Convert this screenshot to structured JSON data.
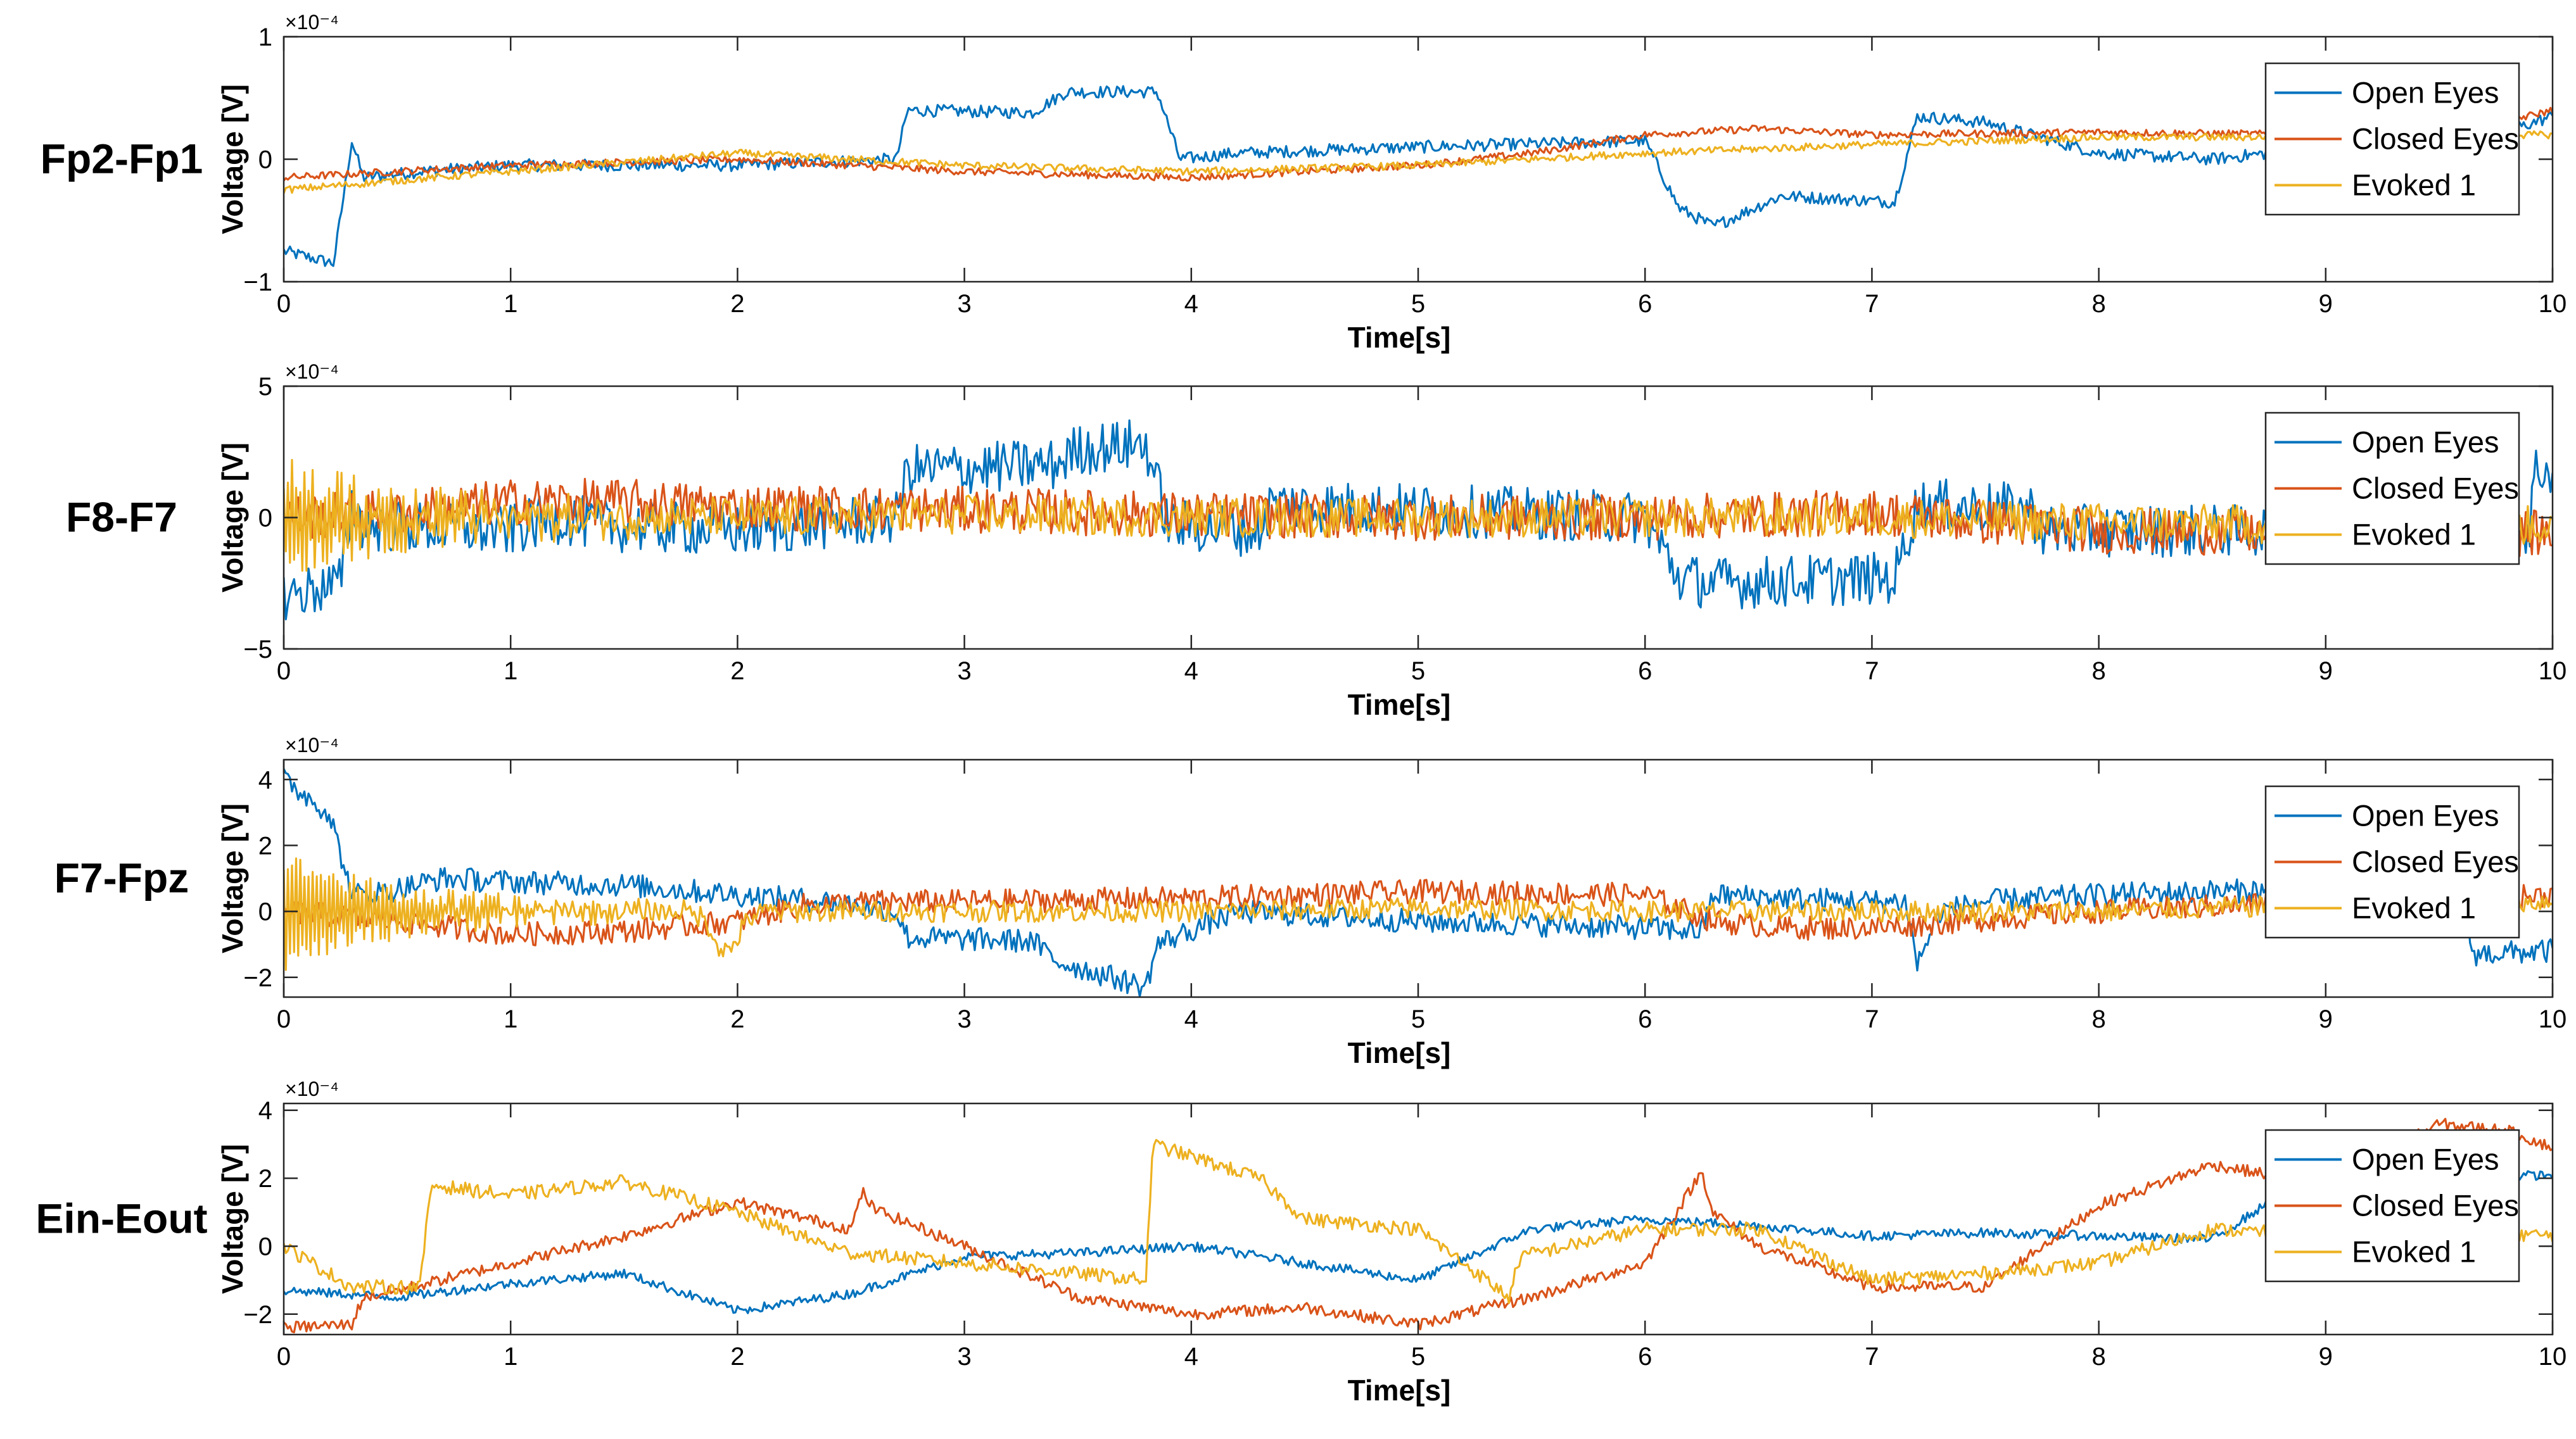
{
  "chart_data": {
    "type": "line",
    "title": "",
    "xlabel": "Time[s]",
    "ylabel": "Voltage [V]",
    "xlim": [
      0,
      10
    ],
    "xticks": [
      0,
      1,
      2,
      3,
      4,
      5,
      6,
      7,
      8,
      9,
      10
    ],
    "grid": false,
    "legend_position": "top-right",
    "series_colors": {
      "Open Eyes": "#0072BD",
      "Closed Eyes": "#D95319",
      "Evoked 1": "#EDB120"
    },
    "panels": [
      {
        "label": "Fp2-Fp1",
        "ylim": [
          -1,
          1
        ],
        "yticks": [
          -1,
          0,
          1
        ],
        "exponent": "×10⁻⁴",
        "xlabel": "Time[s]",
        "ylabel": "Voltage [V]",
        "legend": [
          "Open Eyes",
          "Closed Eyes",
          "Evoked 1"
        ],
        "series": [
          {
            "name": "Open Eyes",
            "noise": 0.1,
            "x": [
              0,
              0.22,
              0.3,
              0.35,
              0.6,
              1,
              2,
              2.7,
              2.75,
              3.3,
              3.45,
              3.85,
              3.95,
              4.2,
              5,
              6,
              6.15,
              6.3,
              6.6,
              7.1,
              7.2,
              7.5,
              8,
              8.5,
              9,
              9.5,
              10
            ],
            "values": [
              -0.75,
              -0.85,
              0.15,
              -0.15,
              -0.1,
              -0.05,
              -0.05,
              0.0,
              0.4,
              0.38,
              0.55,
              0.55,
              0.0,
              0.05,
              0.1,
              0.15,
              -0.4,
              -0.55,
              -0.3,
              -0.35,
              0.35,
              0.3,
              0.05,
              0.0,
              0.1,
              0.05,
              0.35
            ]
          },
          {
            "name": "Closed Eyes",
            "noise": 0.06,
            "x": [
              0,
              1,
              2,
              3,
              4,
              5,
              5.5,
              6,
              6.5,
              7,
              8,
              9,
              9.5,
              10
            ],
            "values": [
              -0.15,
              -0.05,
              0.0,
              -0.1,
              -0.15,
              -0.05,
              0.05,
              0.2,
              0.25,
              0.2,
              0.22,
              0.2,
              0.18,
              0.4
            ]
          },
          {
            "name": "Evoked 1",
            "noise": 0.06,
            "x": [
              0,
              1,
              2,
              3,
              4,
              5,
              6,
              7,
              8,
              9,
              10
            ],
            "values": [
              -0.25,
              -0.1,
              0.05,
              -0.05,
              -0.1,
              -0.05,
              0.05,
              0.12,
              0.18,
              0.18,
              0.2
            ]
          }
        ]
      },
      {
        "label": "F8-F7",
        "ylim": [
          -5,
          5
        ],
        "yticks": [
          -5,
          0,
          5
        ],
        "exponent": "×10⁻⁴",
        "xlabel": "Time[s]",
        "ylabel": "Voltage [V]",
        "legend": [
          "Open Eyes",
          "Closed Eyes",
          "Evoked 1"
        ],
        "series": [
          {
            "name": "Open Eyes",
            "noise": 0.4,
            "x": [
              0,
              0.25,
              0.3,
              0.35,
              1,
              1.2,
              1.4,
              2,
              2.7,
              2.75,
              3.4,
              3.5,
              3.8,
              3.9,
              4.3,
              4.35,
              5,
              6,
              6.15,
              6.3,
              7.1,
              7.2,
              7.7,
              7.75,
              8,
              9,
              9.5,
              9.9,
              9.92,
              10
            ],
            "values": [
              -3.0,
              -2.5,
              0.5,
              -0.3,
              -0.5,
              0.0,
              -0.3,
              -0.5,
              0.0,
              1.8,
              2.0,
              2.6,
              2.8,
              -0.3,
              -0.5,
              0.5,
              0.3,
              0.0,
              -2.3,
              -2.5,
              -2.3,
              0.5,
              0.3,
              -0.5,
              -0.5,
              -0.5,
              -0.5,
              -0.5,
              1.8,
              1.8
            ]
          },
          {
            "name": "Closed Eyes",
            "noise": 0.35,
            "x": [
              0,
              0.5,
              1,
              1.5,
              2,
              3,
              4,
              5,
              6,
              7,
              8,
              9,
              10
            ],
            "values": [
              0.0,
              0.2,
              0.6,
              0.6,
              0.4,
              0.3,
              0.1,
              0.0,
              0.0,
              0.2,
              -0.5,
              -0.6,
              -0.6
            ]
          },
          {
            "name": "Evoked 1",
            "noise": 0.3,
            "osc_amp": 1.6,
            "osc_decay": 0.55,
            "x": [
              0,
              1,
              2,
              3,
              4,
              5,
              6,
              7,
              8,
              9,
              10
            ],
            "values": [
              0.0,
              0.0,
              0.0,
              0.1,
              0.0,
              0.0,
              0.0,
              0.0,
              -0.2,
              -0.3,
              -0.3
            ]
          }
        ]
      },
      {
        "label": "F7-Fpz",
        "ylim": [
          -2.6,
          4.6
        ],
        "yticks": [
          -2,
          0,
          2,
          4
        ],
        "exponent": "×10⁻⁴",
        "xlabel": "Time[s]",
        "ylabel": "Voltage [V]",
        "legend": [
          "Open Eyes",
          "Closed Eyes",
          "Evoked 1"
        ],
        "series": [
          {
            "name": "Open Eyes",
            "noise": 0.2,
            "x": [
              0,
              0.2,
              0.3,
              0.45,
              0.7,
              1,
              1.5,
              2,
              2.4,
              2.7,
              2.75,
              3.3,
              3.4,
              3.8,
              3.85,
              4.2,
              5,
              6,
              6.25,
              6.3,
              7,
              7.15,
              7.2,
              7.3,
              7.5,
              8,
              9,
              9.6,
              9.65,
              10
            ],
            "values": [
              4.0,
              3.0,
              0.5,
              0.6,
              1.0,
              0.9,
              0.8,
              0.5,
              0.3,
              0.0,
              -0.8,
              -0.9,
              -1.5,
              -2.3,
              -1.0,
              0.0,
              -0.3,
              -0.5,
              -0.6,
              0.5,
              0.3,
              0.3,
              -1.6,
              0.0,
              0.3,
              0.5,
              0.7,
              0.5,
              -1.3,
              -1.2
            ]
          },
          {
            "name": "Closed Eyes",
            "noise": 0.2,
            "x": [
              0,
              0.5,
              1,
              1.5,
              2,
              2.3,
              2.7,
              3,
              4,
              5,
              6,
              6.3,
              6.6,
              7,
              8,
              9,
              9.5,
              10
            ],
            "values": [
              0.0,
              -0.3,
              -0.7,
              -0.6,
              -0.3,
              0.2,
              0.3,
              0.3,
              0.4,
              0.6,
              0.5,
              -0.3,
              -0.5,
              -0.5,
              0.0,
              0.3,
              0.3,
              0.5
            ]
          },
          {
            "name": "Evoked 1",
            "noise": 0.18,
            "osc_amp": 1.5,
            "osc_decay": 0.5,
            "dip_at": 1.95,
            "dip_depth": -1.2,
            "dip_width": 0.08,
            "x": [
              0,
              1,
              2,
              3,
              4,
              5,
              6,
              7,
              8,
              9,
              10
            ],
            "values": [
              0.0,
              0.0,
              0.0,
              0.0,
              0.0,
              0.1,
              0.0,
              0.0,
              0.0,
              0.2,
              0.3
            ]
          }
        ]
      },
      {
        "label": "Ein-Eout",
        "ylim": [
          -2.6,
          4.2
        ],
        "yticks": [
          -2,
          0,
          2,
          4
        ],
        "exponent": "×10⁻⁴",
        "xlabel": "Time[s]",
        "ylabel": "Voltage [V]",
        "legend": [
          "Open Eyes",
          "Closed Eyes",
          "Evoked 1"
        ],
        "series": [
          {
            "name": "Open Eyes",
            "noise": 0.08,
            "x": [
              0,
              0.5,
              1,
              1.5,
              2,
              2.5,
              3,
              3.5,
              4,
              4.5,
              5,
              5.5,
              6,
              6.5,
              7,
              7.5,
              8,
              8.5,
              8.8,
              9,
              9.5,
              10
            ],
            "values": [
              -1.3,
              -1.5,
              -1.1,
              -0.8,
              -1.9,
              -1.4,
              -0.3,
              -0.2,
              0.0,
              -0.5,
              -1.0,
              0.5,
              0.8,
              0.6,
              0.3,
              0.4,
              0.3,
              0.2,
              1.5,
              2.0,
              2.0,
              2.1
            ]
          },
          {
            "name": "Closed Eyes",
            "noise": 0.1,
            "x": [
              0,
              0.3,
              0.35,
              0.5,
              1,
              1.5,
              2,
              2.5,
              2.55,
              2.6,
              3,
              3.5,
              4,
              4.5,
              5,
              5.5,
              6,
              6.25,
              6.3,
              6.5,
              7,
              7.5,
              8,
              8.5,
              9,
              9.5,
              9.8,
              10
            ],
            "values": [
              -2.4,
              -2.3,
              -1.5,
              -1.3,
              -0.5,
              0.3,
              1.3,
              0.5,
              1.6,
              1.1,
              0.0,
              -1.5,
              -2.0,
              -1.8,
              -2.3,
              -1.5,
              -0.5,
              2.2,
              1.0,
              0.0,
              -1.2,
              -1.2,
              1.2,
              2.4,
              1.8,
              3.6,
              3.4,
              2.9
            ]
          },
          {
            "name": "Evoked 1",
            "noise": 0.12,
            "x": [
              0,
              0.3,
              0.6,
              0.65,
              1,
              1.5,
              2,
              2.4,
              2.5,
              3,
              3.5,
              3.8,
              3.83,
              4.3,
              4.5,
              5,
              5.4,
              5.45,
              6,
              6.5,
              7,
              7.5,
              8,
              8.5,
              9,
              9.5,
              10
            ],
            "values": [
              0.0,
              -1.2,
              -1.2,
              1.8,
              1.5,
              1.9,
              1.0,
              0.0,
              -0.2,
              -0.5,
              -0.8,
              -1.0,
              3.0,
              2.0,
              0.8,
              0.5,
              -1.5,
              -0.3,
              0.5,
              0.5,
              -1.0,
              -0.8,
              -0.5,
              0.5,
              0.3,
              0.5,
              0.3
            ]
          }
        ]
      }
    ]
  }
}
